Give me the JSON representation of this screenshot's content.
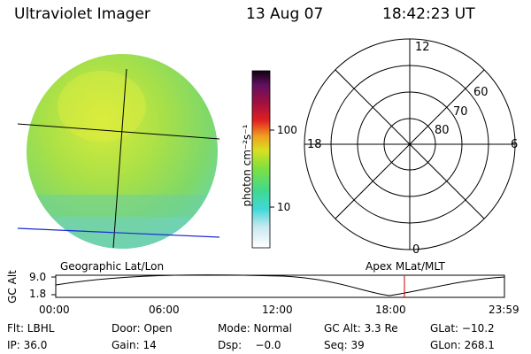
{
  "header": {
    "instrument": "Ultraviolet Imager",
    "date": "13 Aug 07",
    "time": "18:42:23 UT"
  },
  "colorbar": {
    "unit_label": "photon cm⁻²s⁻¹",
    "ticks": [
      "100",
      "10"
    ]
  },
  "polar_plot": {
    "mlt_labels": {
      "top": "12",
      "left": "18",
      "right": "6",
      "bottom": "0"
    },
    "lat_labels": [
      "60",
      "70",
      "80"
    ]
  },
  "image_labels": {
    "left_label": "Geographic Lat/Lon",
    "right_label": "Apex MLat/MLT"
  },
  "orbit_plot": {
    "y_axis_label": "GC Alt",
    "y_ticks": [
      "9.0",
      "1.8"
    ],
    "x_ticks": [
      "00:00",
      "06:00",
      "12:00",
      "18:00",
      "23:59"
    ],
    "current_time_color": "#cc0000"
  },
  "status": {
    "row1": [
      "Flt: LBHL",
      "Door: Open",
      "Mode: Normal",
      "GC Alt: 3.3 Re",
      "GLat: −10.2"
    ],
    "row2": [
      "IP: 36.0",
      "Gain: 14",
      "Dsp:    −0.0",
      "Seq: 39",
      "GLon: 268.1"
    ]
  },
  "colors": {
    "disk_base": "#9ee04a",
    "grid_line": "#000000",
    "blue_line": "#1a2bd6"
  }
}
